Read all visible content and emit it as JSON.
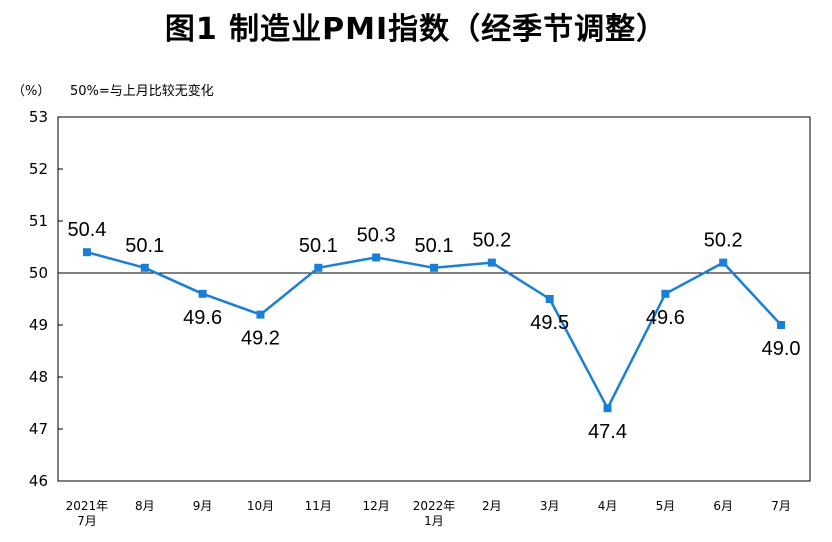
{
  "chart_data": {
    "type": "line",
    "title": "图1  制造业PMI指数（经季节调整）",
    "unit": "（%）",
    "reference_note": "50%=与上月比较无变化",
    "reference_value": 50,
    "ylim": [
      46,
      53
    ],
    "yticks": [
      "53",
      "52",
      "51",
      "50",
      "49",
      "48",
      "47",
      "46"
    ],
    "categories": [
      [
        "2021年",
        "7月"
      ],
      [
        "8月"
      ],
      [
        "9月"
      ],
      [
        "10月"
      ],
      [
        "11月"
      ],
      [
        "12月"
      ],
      [
        "2022年",
        "1月"
      ],
      [
        "2月"
      ],
      [
        "3月"
      ],
      [
        "4月"
      ],
      [
        "5月"
      ],
      [
        "6月"
      ],
      [
        "7月"
      ]
    ],
    "values": [
      50.4,
      50.1,
      49.6,
      49.2,
      50.1,
      50.3,
      50.1,
      50.2,
      49.5,
      47.4,
      49.6,
      50.2,
      49.0
    ],
    "value_labels": [
      "50.4",
      "50.1",
      "49.6",
      "49.2",
      "50.1",
      "50.3",
      "50.1",
      "50.2",
      "49.5",
      "47.4",
      "49.6",
      "50.2",
      "49.0"
    ],
    "label_positions": [
      "above",
      "above",
      "below",
      "below",
      "above",
      "above",
      "above",
      "above",
      "below",
      "below",
      "below",
      "above",
      "below"
    ],
    "line_color": "#1a7fd6",
    "grid": false
  }
}
